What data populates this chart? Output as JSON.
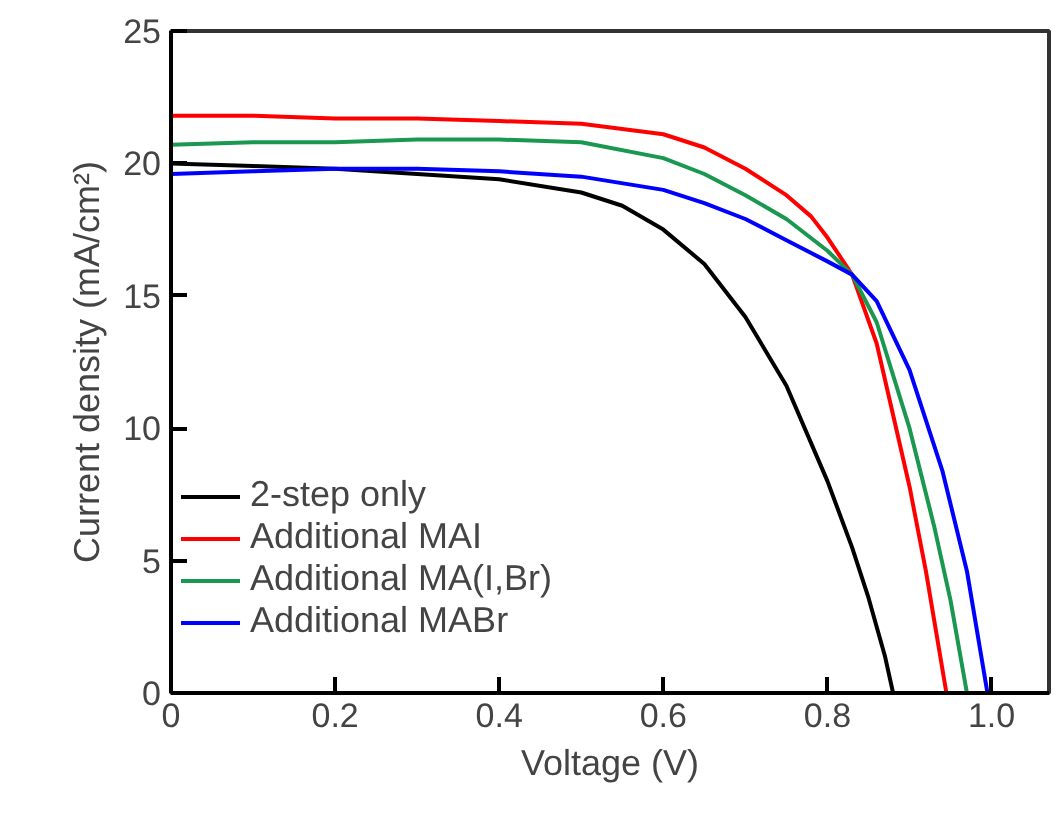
{
  "chart_data": {
    "type": "line",
    "xlabel": "Voltage (V)",
    "ylabel": "Current density (mA/cm²)",
    "xlim": [
      0,
      1.07
    ],
    "xticks": [
      0,
      0.2,
      0.4,
      0.6,
      0.8,
      {
        "value": 1,
        "label": "1.0"
      }
    ],
    "ylim": [
      0,
      25
    ],
    "yticks": [
      0,
      5,
      10,
      15,
      20,
      25
    ],
    "grid": false,
    "legend": "left",
    "line_style": "solid",
    "marker": "none",
    "series": [
      {
        "name": "2-step only",
        "color": "#000000",
        "x": [
          0,
          0.1,
          0.2,
          0.3,
          0.4,
          0.5,
          0.55,
          0.6,
          0.65,
          0.7,
          0.75,
          0.8,
          0.83,
          0.85,
          0.87,
          0.88
        ],
        "values": [
          20.0,
          19.9,
          19.8,
          19.6,
          19.4,
          18.9,
          18.4,
          17.5,
          16.2,
          14.2,
          11.6,
          8.0,
          5.5,
          3.6,
          1.4,
          0
        ]
      },
      {
        "name": "Additional MAI",
        "color": "#ff0000",
        "x": [
          0,
          0.1,
          0.2,
          0.3,
          0.4,
          0.5,
          0.6,
          0.65,
          0.7,
          0.75,
          0.78,
          0.8,
          0.83,
          0.86,
          0.88,
          0.9,
          0.92,
          0.945
        ],
        "values": [
          21.8,
          21.8,
          21.7,
          21.7,
          21.6,
          21.5,
          21.1,
          20.6,
          19.8,
          18.8,
          18.0,
          17.2,
          15.8,
          13.2,
          10.5,
          7.8,
          4.6,
          0
        ]
      },
      {
        "name": "Additional MA(I,Br)",
        "color": "#1a9850",
        "x": [
          0,
          0.1,
          0.2,
          0.3,
          0.4,
          0.5,
          0.6,
          0.65,
          0.7,
          0.75,
          0.8,
          0.83,
          0.86,
          0.9,
          0.93,
          0.95,
          0.97
        ],
        "values": [
          20.7,
          20.8,
          20.8,
          20.9,
          20.9,
          20.8,
          20.2,
          19.6,
          18.8,
          17.9,
          16.7,
          15.8,
          14.0,
          10.0,
          6.3,
          3.5,
          0
        ]
      },
      {
        "name": "Additional MABr",
        "color": "#0000ff",
        "x": [
          0,
          0.1,
          0.2,
          0.3,
          0.4,
          0.5,
          0.6,
          0.65,
          0.7,
          0.75,
          0.8,
          0.83,
          0.86,
          0.9,
          0.94,
          0.97,
          0.995
        ],
        "values": [
          19.6,
          19.7,
          19.8,
          19.8,
          19.7,
          19.5,
          19.0,
          18.5,
          17.9,
          17.1,
          16.3,
          15.8,
          14.8,
          12.2,
          8.4,
          4.6,
          0
        ]
      }
    ]
  }
}
